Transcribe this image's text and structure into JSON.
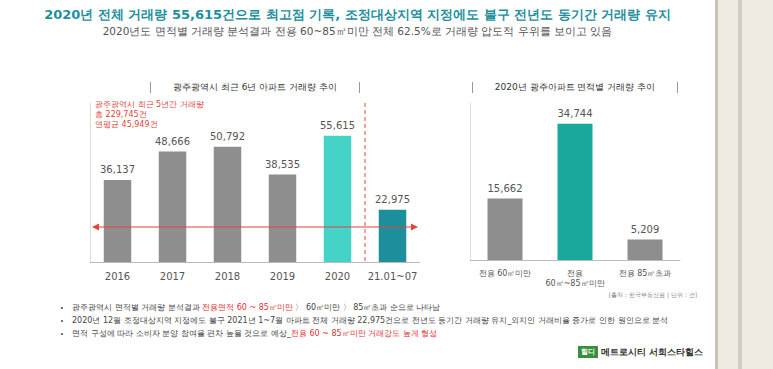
{
  "header": {
    "title": "2020년 전체 거래량 55,615건으로 최고점 기록, 조정대상지역 지정에도 불구 전년도 동기간 거래량 유지",
    "subtitle": "2020년도 면적별 거래량 분석결과 전용 60~85㎡미만 전체 62.5%로 거래량 압도적 우위를 보이고 있음"
  },
  "chart_data": [
    {
      "type": "bar",
      "title": "광주광역시 최근 6년 아파트 거래량 추이",
      "categories": [
        "2016",
        "2017",
        "2018",
        "2019",
        "2020",
        "21.01~07"
      ],
      "values": [
        36137,
        48666,
        50792,
        38535,
        55615,
        22975
      ],
      "value_labels": [
        "36,137",
        "48,666",
        "50,792",
        "38,535",
        "55,615",
        "22,975"
      ],
      "colors": [
        "#8e8e8e",
        "#8e8e8e",
        "#8e8e8e",
        "#8e8e8e",
        "#45d3c7",
        "#1c8e9c"
      ],
      "ylim": [
        0,
        70000
      ],
      "tick_labels": "x",
      "grid": false,
      "data_labels": true,
      "annotations": [
        "광주광역시 최근 5년간 거래량",
        "총 229,745건",
        "연평균 45,949건"
      ]
    },
    {
      "type": "bar",
      "title": "2020년 광주아파트 면적별 거래량 추이",
      "categories": [
        "전용 60㎡미만",
        "전용 60㎡~85㎡미만",
        "전용 85㎡초과"
      ],
      "values": [
        15662,
        34744,
        5209
      ],
      "value_labels": [
        "15,662",
        "34,744",
        "5,209"
      ],
      "colors": [
        "#8e8e8e",
        "#1aa79c",
        "#8e8e8e"
      ],
      "ylim": [
        0,
        40000
      ],
      "tick_labels": "x",
      "grid": false,
      "data_labels": true,
      "source": "[출처 : 한국부동산원 | 단위 : 건]"
    }
  ],
  "bullets": [
    [
      {
        "text": "광주광역시 면적별 거래량 분석결과 "
      },
      {
        "text": "전용면적 60 ~ 85㎡미만",
        "color": "#e0302f"
      },
      {
        "text": " 〉 60㎡미만 〉 85㎡초과 순으로 나타남"
      }
    ],
    [
      {
        "text": "2020년 12월 조정대상지역 지정에도 불구 2021년 1~7월 아파트 전체 거래량 22,975건으로 전년도 동기간 거래량 유지_외지인 거래비율 증가로 인한 원인으로 분석"
      }
    ],
    [
      {
        "text": "면적 구성에 따라 소비자 분양 참여율 편차 높을 것으로 예상_"
      },
      {
        "text": "전용 60 ~ 85㎡미만 거래강도 높게 형성",
        "color": "#e0302f"
      }
    ]
  ],
  "footer": {
    "tag": "힐디",
    "text": "메트로시티 서희스타힐스"
  }
}
